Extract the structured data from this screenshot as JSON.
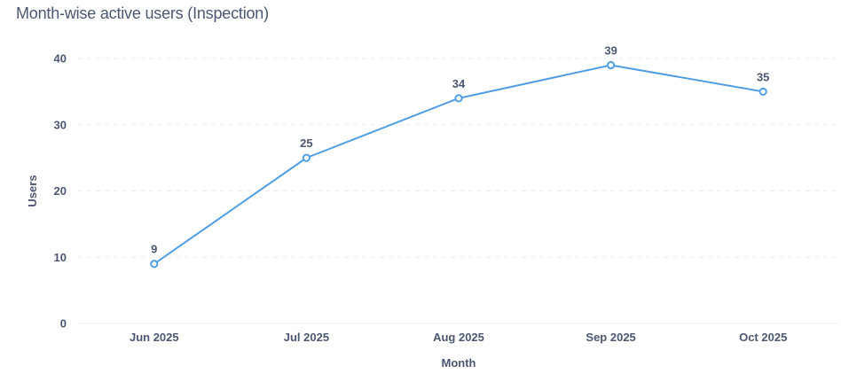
{
  "card": {
    "title": "Month-wise active users (Inspection)"
  },
  "chart_data": {
    "type": "line",
    "title": "Month-wise active users (Inspection)",
    "xlabel": "Month",
    "ylabel": "Users",
    "categories": [
      "Jun 2025",
      "Jul 2025",
      "Aug 2025",
      "Sep 2025",
      "Oct 2025"
    ],
    "series": [
      {
        "values": [
          9,
          25,
          34,
          39,
          35
        ],
        "color": "#509ee3"
      }
    ],
    "yticks": [
      0,
      10,
      20,
      30,
      40
    ],
    "ylim": [
      0,
      40
    ],
    "grid": true,
    "legend": "none",
    "data_labels": true
  }
}
